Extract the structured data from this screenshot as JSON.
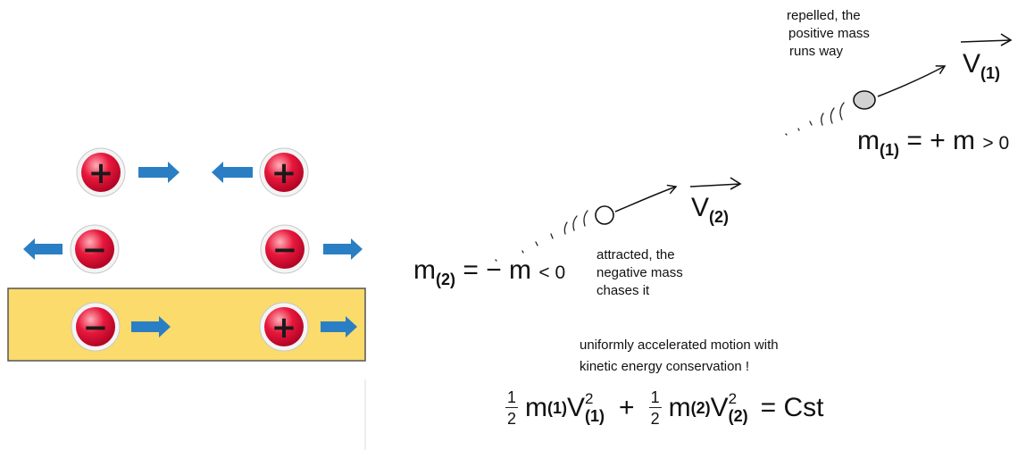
{
  "panel": {
    "charge_signs": {
      "plus": "+",
      "minus": "−"
    },
    "colors": {
      "sphere": "#e5003a",
      "arrow": "#2a7fc4",
      "plate": "#fadb6b",
      "plate_border": "#555555"
    }
  },
  "texts": {
    "repelled": [
      "repelled, the",
      "positive mass",
      "runs way"
    ],
    "attracted": [
      "attracted, the",
      "negative mass",
      "chases it"
    ],
    "uniform": [
      "uniformly accelerated motion with",
      "kinetic energy conservation !"
    ]
  },
  "vectors": {
    "v1": {
      "base": "V",
      "sub": "(1)"
    },
    "v2": {
      "base": "V",
      "sub": "(2)"
    }
  },
  "masses": {
    "m1": {
      "base": "m",
      "sub": "(1)",
      "rhs": "= + m",
      "ineq": "> 0"
    },
    "m2": {
      "base": "m",
      "sub": "(2)",
      "rhs": "= − m",
      "ineq": "< 0"
    }
  },
  "equation": {
    "num": "1",
    "den": "2",
    "m": "m",
    "v": "V",
    "sub1": "(1)",
    "sub2": "(2)",
    "sq": "2",
    "plus": "+",
    "rhs": "= Cst"
  }
}
